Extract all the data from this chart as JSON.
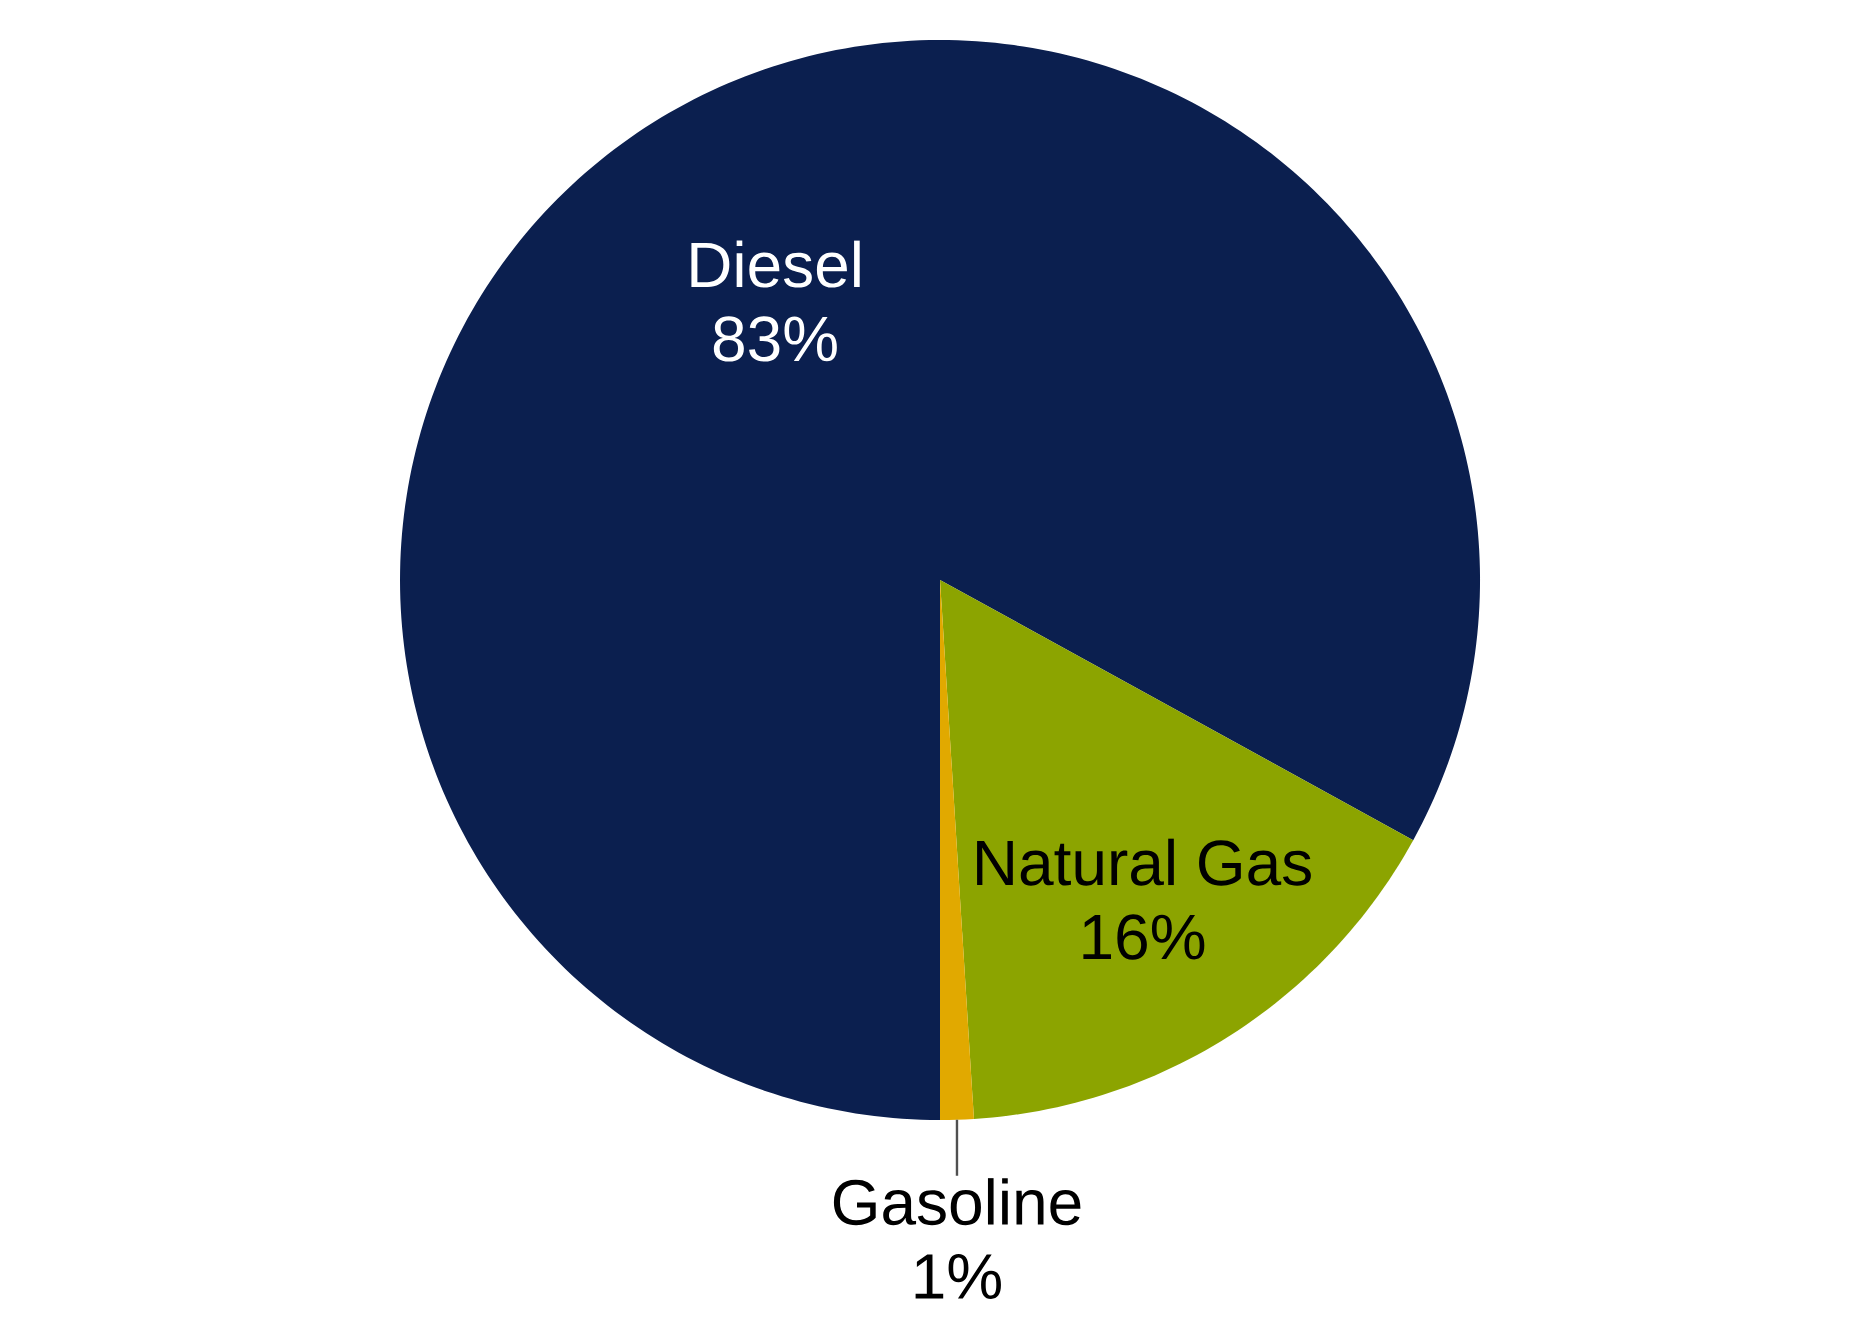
{
  "chart_data": {
    "type": "pie",
    "categories": [
      "Diesel",
      "Natural Gas",
      "Gasoline"
    ],
    "values": [
      83,
      16,
      1
    ],
    "colors": [
      "#0b1f4f",
      "#8ca400",
      "#e1a900"
    ],
    "value_labels": [
      "83%",
      "16%",
      "1%"
    ]
  }
}
